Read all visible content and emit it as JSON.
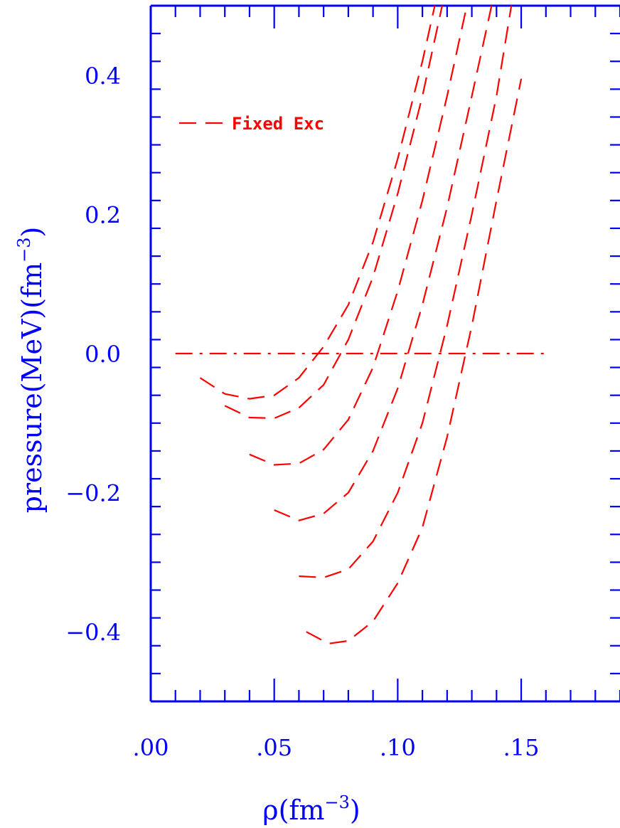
{
  "chart_data": {
    "type": "line",
    "xlabel_main": "ρ(fm",
    "xlabel_sup": "−3",
    "xlabel_close": ")",
    "ylabel_main": "pressure(MeV)(fm",
    "ylabel_sup": "−3",
    "ylabel_close": ")",
    "xlim": [
      0.0,
      0.19
    ],
    "ylim": [
      -0.5,
      0.5
    ],
    "xticks": [
      {
        "value": 0.0,
        "label": ".00"
      },
      {
        "value": 0.05,
        "label": ".05"
      },
      {
        "value": 0.1,
        "label": ".10"
      },
      {
        "value": 0.15,
        "label": ".15"
      }
    ],
    "yticks": [
      {
        "value": -0.4,
        "label": "−0.4"
      },
      {
        "value": -0.2,
        "label": "−0.2"
      },
      {
        "value": 0.0,
        "label": "0.0"
      },
      {
        "value": 0.2,
        "label": "0.2"
      },
      {
        "value": 0.4,
        "label": "0.4"
      }
    ],
    "grid": false,
    "legend": {
      "label": "Fixed Exc",
      "placement": "top-left"
    },
    "reference_line": {
      "y": 0.0,
      "x": [
        0.01,
        0.16
      ],
      "style": "dash-dot"
    },
    "series": [
      {
        "x": [
          0.02,
          0.03,
          0.04,
          0.05,
          0.06,
          0.07,
          0.08,
          0.09,
          0.1,
          0.11,
          0.115
        ],
        "y": [
          -0.035,
          -0.058,
          -0.065,
          -0.06,
          -0.035,
          0.01,
          0.07,
          0.16,
          0.28,
          0.42,
          0.5
        ]
      },
      {
        "x": [
          0.03,
          0.04,
          0.05,
          0.06,
          0.07,
          0.08,
          0.09,
          0.1,
          0.11,
          0.118
        ],
        "y": [
          -0.075,
          -0.092,
          -0.093,
          -0.078,
          -0.045,
          0.02,
          0.11,
          0.23,
          0.37,
          0.5
        ]
      },
      {
        "x": [
          0.04,
          0.05,
          0.06,
          0.07,
          0.08,
          0.09,
          0.1,
          0.11,
          0.12,
          0.128
        ],
        "y": [
          -0.145,
          -0.16,
          -0.158,
          -0.138,
          -0.095,
          -0.02,
          0.09,
          0.22,
          0.37,
          0.5
        ]
      },
      {
        "x": [
          0.05,
          0.06,
          0.07,
          0.08,
          0.09,
          0.1,
          0.11,
          0.12,
          0.13,
          0.138
        ],
        "y": [
          -0.225,
          -0.24,
          -0.23,
          -0.2,
          -0.14,
          -0.05,
          0.07,
          0.21,
          0.37,
          0.5
        ]
      },
      {
        "x": [
          0.06,
          0.07,
          0.08,
          0.09,
          0.1,
          0.11,
          0.12,
          0.13,
          0.14,
          0.146
        ],
        "y": [
          -0.32,
          -0.322,
          -0.31,
          -0.27,
          -0.2,
          -0.1,
          0.04,
          0.2,
          0.37,
          0.5
        ]
      },
      {
        "x": [
          0.063,
          0.072,
          0.08,
          0.09,
          0.1,
          0.11,
          0.12,
          0.13,
          0.14,
          0.15
        ],
        "y": [
          -0.4,
          -0.417,
          -0.413,
          -0.385,
          -0.33,
          -0.25,
          -0.12,
          0.04,
          0.22,
          0.395
        ]
      }
    ]
  },
  "colors": {
    "axis": "#0000ff",
    "series": "#ff0000",
    "background": "#ffffff"
  }
}
